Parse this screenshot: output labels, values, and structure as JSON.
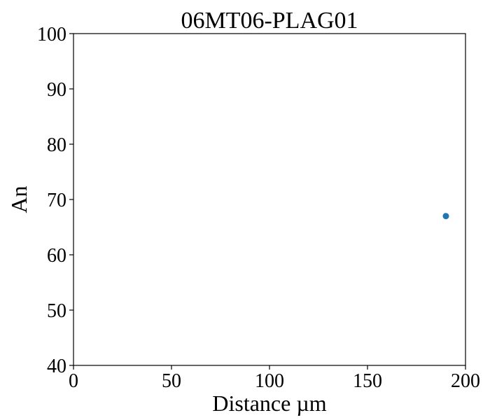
{
  "chart_data": {
    "type": "scatter",
    "title": "06MT06-PLAG01",
    "xlabel": "Distance µm",
    "ylabel": "An",
    "xlim": [
      0,
      200
    ],
    "ylim": [
      40,
      100
    ],
    "x_ticks": [
      "0",
      "50",
      "100",
      "150",
      "200"
    ],
    "y_ticks": [
      "40",
      "50",
      "60",
      "70",
      "80",
      "90",
      "100"
    ],
    "grid": false,
    "series": [
      {
        "color": "#1f77b4",
        "points": [
          {
            "x": 190,
            "y": 67
          }
        ]
      }
    ]
  }
}
